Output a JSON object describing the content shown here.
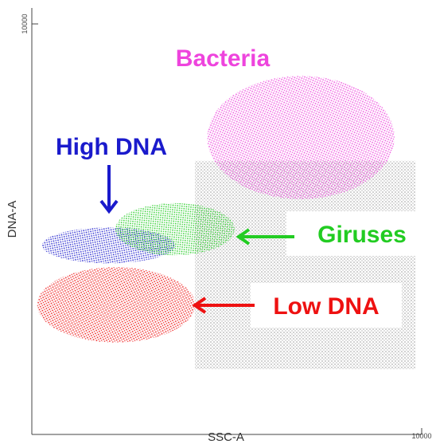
{
  "chart_data": {
    "type": "scatter",
    "x_label": "SSC-A",
    "y_label": "DNA-A",
    "log_x": true,
    "log_y": true,
    "xlim": [
      10,
      10000
    ],
    "ylim": [
      10,
      10000
    ],
    "xticks": [
      10000
    ],
    "yticks": [
      10000
    ],
    "series": [
      {
        "color": "#222222",
        "x_range": [
          180,
          9000
        ],
        "y_range": [
          30,
          1000
        ]
      },
      {
        "name": "Low DNA",
        "color": "#ee1111",
        "x_range": [
          11,
          180
        ],
        "y_range": [
          47,
          167
        ]
      },
      {
        "name": "High DNA",
        "color": "#1a1acc",
        "x_range": [
          12,
          126
        ],
        "y_range": [
          178,
          325
        ]
      },
      {
        "name": "Giruses",
        "color": "#22cc22",
        "x_range": [
          44,
          363
        ],
        "y_range": [
          204,
          490
        ]
      },
      {
        "name": "Bacteria",
        "color": "#ee44dd",
        "x_range": [
          224,
          6170
        ],
        "y_range": [
          525,
          4170
        ]
      }
    ]
  }
}
